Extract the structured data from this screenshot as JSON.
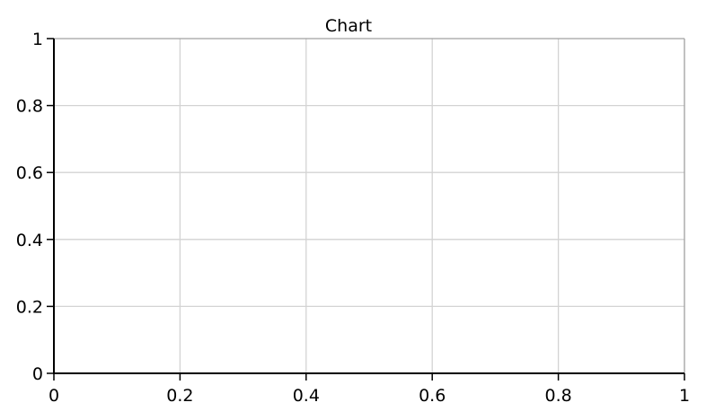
{
  "chart_data": {
    "type": "line",
    "title": "Chart",
    "xlabel": "",
    "ylabel": "",
    "xlim": [
      0,
      1
    ],
    "ylim": [
      0,
      1
    ],
    "x_ticks": [
      "0",
      "0.2",
      "0.4",
      "0.6",
      "0.8",
      "1"
    ],
    "y_ticks": [
      "0",
      "0.2",
      "0.4",
      "0.6",
      "0.8",
      "1"
    ],
    "grid": true,
    "series": [],
    "colors": {
      "grid": "#d3d3d3",
      "axis": "#000000",
      "frame": "#a0a0a0"
    }
  }
}
